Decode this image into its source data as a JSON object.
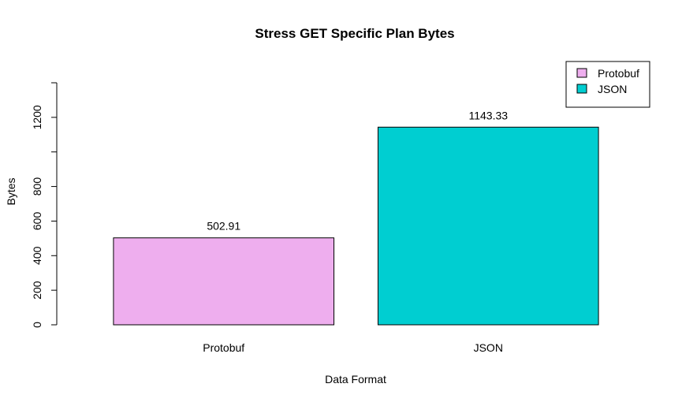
{
  "chart_data": {
    "type": "bar",
    "title": "Stress GET Specific Plan Bytes",
    "xlabel": "Data Format",
    "ylabel": "Bytes",
    "categories": [
      "Protobuf",
      "JSON"
    ],
    "values": [
      502.91,
      1143.33
    ],
    "value_labels": [
      "502.91",
      "1143.33"
    ],
    "colors": [
      "#EEAEEE",
      "#00CED1"
    ],
    "ylim": [
      0,
      1400
    ],
    "y_ticks": [
      0,
      200,
      400,
      600,
      800,
      1000,
      1200,
      1400
    ],
    "y_tick_labels": [
      "0",
      "200",
      "400",
      "600",
      "800",
      "",
      "1200",
      ""
    ],
    "legend": {
      "position": "top-right",
      "entries": [
        {
          "label": "Protobuf",
          "color": "#EEAEEE"
        },
        {
          "label": "JSON",
          "color": "#00CED1"
        }
      ]
    },
    "grid": false
  }
}
